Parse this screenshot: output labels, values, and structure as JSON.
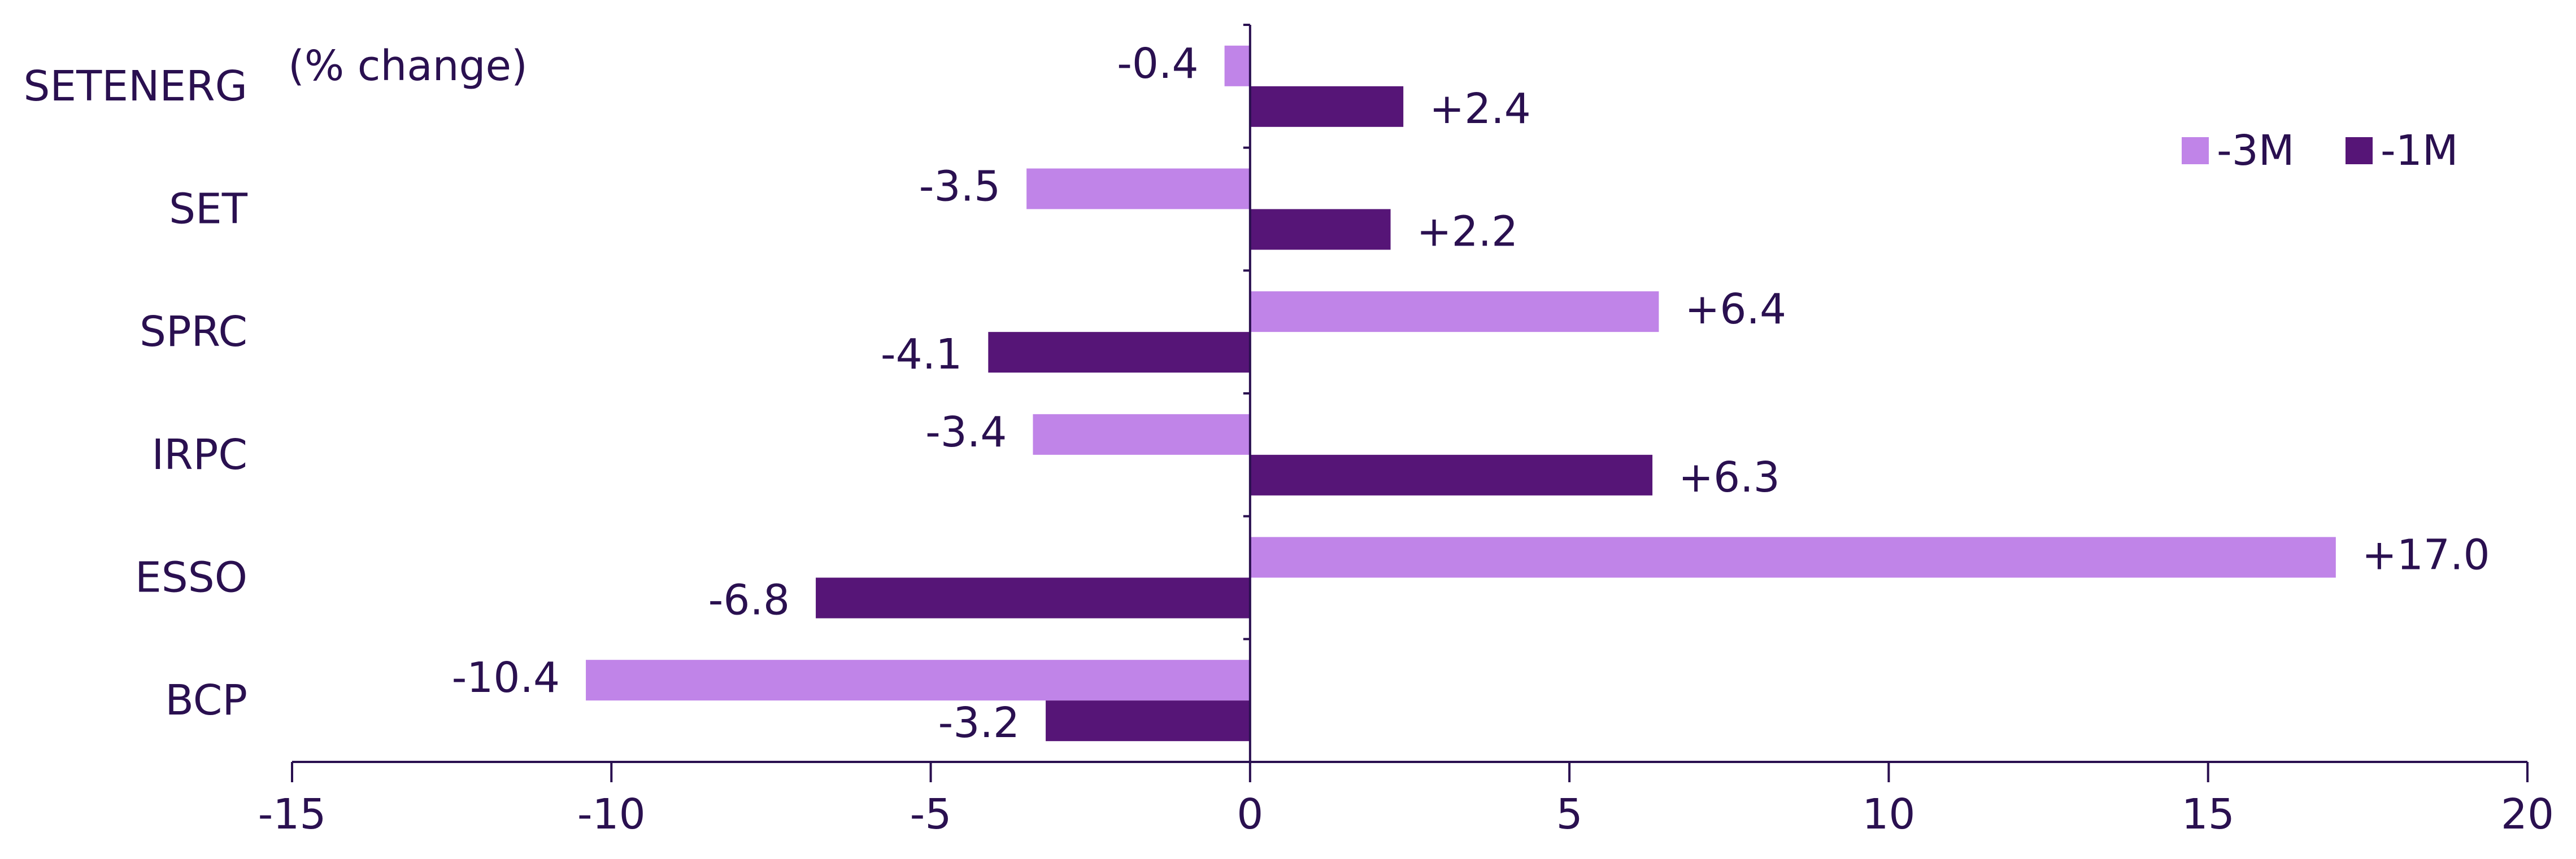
{
  "chart_data": {
    "type": "bar",
    "orientation": "horizontal",
    "unit_label": "(% change)",
    "categories": [
      "SETENERG",
      "SET",
      "SPRC",
      "IRPC",
      "ESSO",
      "BCP"
    ],
    "series": [
      {
        "name": "-3M",
        "color": "#c084e8",
        "values": [
          -0.4,
          -3.5,
          6.4,
          -3.4,
          17.0,
          -10.4
        ],
        "labels": [
          "-0.4",
          "-3.5",
          "+6.4",
          "-3.4",
          "+17.0",
          "-10.4"
        ]
      },
      {
        "name": "-1M",
        "color": "#561577",
        "values": [
          2.4,
          2.2,
          -4.1,
          6.3,
          -6.8,
          -3.2
        ],
        "labels": [
          "+2.4",
          "+2.2",
          "-4.1",
          "+6.3",
          "-6.8",
          "-3.2"
        ]
      }
    ],
    "xlim": [
      -15,
      20
    ],
    "xticks": [
      "-15",
      "-10",
      "-5",
      "0",
      "5",
      "10",
      "15",
      "20"
    ],
    "grid": false,
    "legend_position": "top-right",
    "text_color": "#2a1050",
    "axis_color": "#2a1050"
  }
}
